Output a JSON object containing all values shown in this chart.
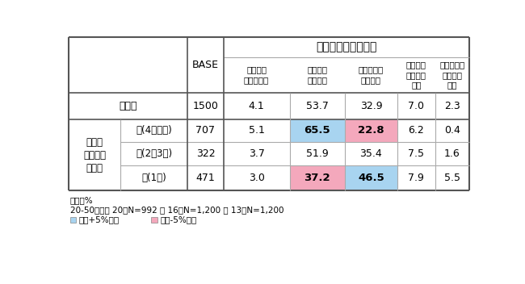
{
  "title": "食生活の総合満足度",
  "col_headers": [
    "BASE",
    "非常に満\n足している",
    "まあ満足\nしている",
    "どちらとも\nいえない",
    "あまり満\n足してい\nない",
    "まったく満\n足してい\nない"
  ],
  "group_label": "できる\n調理方法\n選択数",
  "zenntai_label": "全　体",
  "zenntai_base": "1500",
  "zenntai_vals": [
    "4.1",
    "53.7",
    "32.9",
    "7.0",
    "2.3"
  ],
  "sub_labels": [
    "高(4個以上)",
    "中(2〜3個)",
    "低(1個)"
  ],
  "sub_bases": [
    "707",
    "322",
    "471"
  ],
  "sub_vals": [
    [
      "5.1",
      "65.5",
      "22.8",
      "6.2",
      "0.4"
    ],
    [
      "3.7",
      "51.9",
      "35.4",
      "7.5",
      "1.6"
    ],
    [
      "3.0",
      "37.2",
      "46.5",
      "7.9",
      "5.5"
    ]
  ],
  "sub_hl": [
    [
      null,
      "blue",
      "pink",
      null,
      null
    ],
    [
      null,
      null,
      null,
      null,
      null
    ],
    [
      null,
      "pink",
      "blue",
      null,
      null
    ]
  ],
  "footnote1": "単位：%",
  "footnote2": "20-50代計： 20年N=992 ／ 16年N=1,200 ／ 13年N=1,200",
  "legend": [
    {
      "color": "#a8d4f0",
      "label": "全体+5%以上"
    },
    {
      "color": "#f4a8bc",
      "label": "全体-5%以下"
    }
  ],
  "blue_color": "#a8d4f0",
  "pink_color": "#f4a8bc",
  "dark_border": "#555555",
  "light_border": "#aaaaaa"
}
